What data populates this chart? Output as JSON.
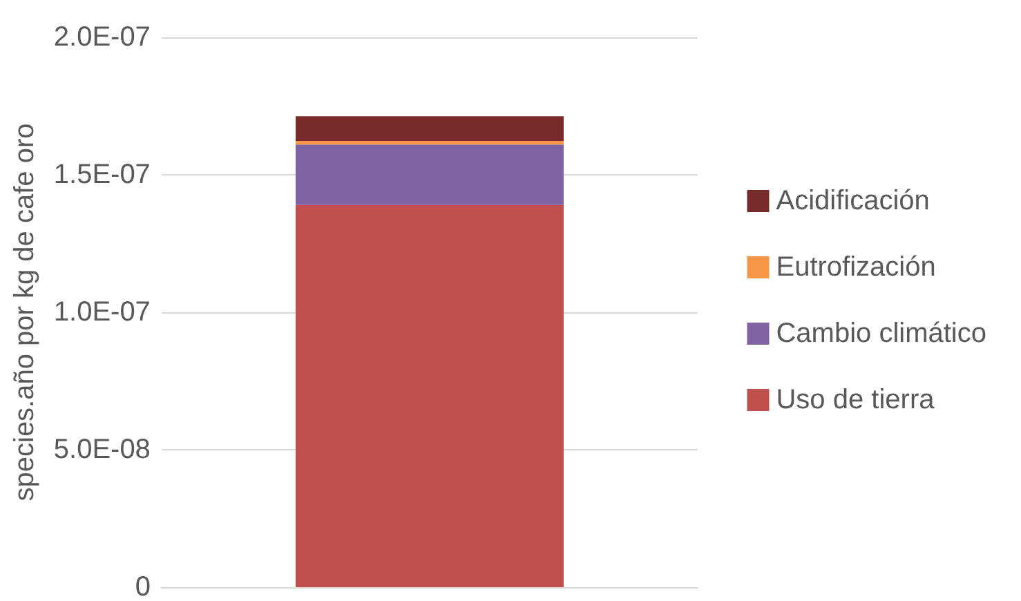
{
  "chart_data": {
    "type": "bar",
    "ylabel": "species.año por kg de cafe oro",
    "categories": [
      null
    ],
    "stacked": true,
    "series": [
      {
        "name": "Uso de tierra",
        "color": "#c0504d",
        "values": [
          1.39e-07
        ]
      },
      {
        "name": "Cambio climático",
        "color": "#8064a2",
        "values": [
          2.2e-08
        ]
      },
      {
        "name": "Eutrofización",
        "color": "#f79646",
        "values": [
          1.3e-09
        ]
      },
      {
        "name": "Acidificación",
        "color": "#772c2a",
        "values": [
          9e-09
        ]
      }
    ],
    "ylim": [
      0,
      2e-07
    ],
    "yticks": [
      0,
      {
        "value": 5e-08,
        "label": "5.0E-08"
      },
      {
        "value": 1e-07,
        "label": "1.0E-07"
      },
      {
        "value": 1.5e-07,
        "label": "1.5E-07"
      },
      {
        "value": 2e-07,
        "label": "2.0E-07"
      }
    ],
    "grid": "y",
    "legend": "right"
  }
}
